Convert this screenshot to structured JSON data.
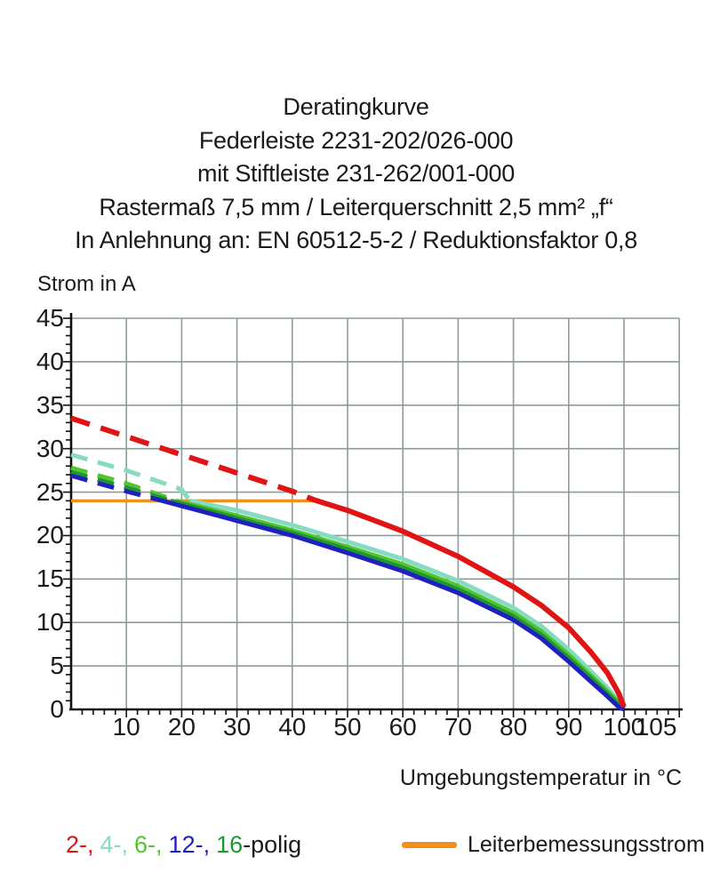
{
  "title": {
    "lines": [
      "Deratingkurve",
      "Federleiste 2231-202/026-000",
      "mit Stiftleiste 231-262/001-000",
      "Rastermaß 7,5 mm / Leiterquerschnitt 2,5 mm² „f“",
      "In Anlehnung an: EN 60512-5-2 / Reduktionsfaktor 0,8"
    ]
  },
  "colors": {
    "red": "#e01414",
    "cyan": "#85dcc2",
    "light_green": "#52c52e",
    "dark_green": "#1e9632",
    "blue": "#2020bE",
    "orange": "#f0911e",
    "grid": "#8e9b9b",
    "axis": "#111111"
  },
  "chart_data": {
    "type": "line",
    "title": "Deratingkurve",
    "xlabel": "Umgebungstemperatur in °C",
    "ylabel": "Strom in A",
    "xlim": [
      0,
      110
    ],
    "ylim": [
      0,
      45
    ],
    "grid": true,
    "x_gridline_step": 10,
    "y_gridline_step": 5,
    "x_minor_tick_step": 2,
    "y_minor_tick_step": 1,
    "x_tick_labels": [
      10,
      20,
      30,
      40,
      50,
      60,
      70,
      80,
      90,
      100,
      105
    ],
    "y_tick_labels": [
      45,
      40,
      35,
      30,
      25,
      20,
      15,
      10,
      5,
      0
    ],
    "legend_position": "bottom",
    "rated_line": {
      "name": "Leiterbemessungsstrom",
      "color": "#f0911e",
      "y": 24,
      "x_range": [
        0,
        44
      ]
    },
    "series": [
      {
        "name": "4-polig",
        "color": "#85dcc2",
        "dash_until_x": 21.5,
        "points": [
          [
            0,
            29.3
          ],
          [
            10,
            27.5
          ],
          [
            20,
            25.3
          ],
          [
            21.5,
            24.0
          ],
          [
            30,
            22.9
          ],
          [
            40,
            21.2
          ],
          [
            50,
            19.3
          ],
          [
            60,
            17.3
          ],
          [
            70,
            14.8
          ],
          [
            80,
            11.7
          ],
          [
            85,
            9.6
          ],
          [
            90,
            6.9
          ],
          [
            94,
            4.4
          ],
          [
            97,
            2.5
          ],
          [
            99,
            1.0
          ],
          [
            100,
            0.2
          ]
        ]
      },
      {
        "name": "6-polig",
        "color": "#52c52e",
        "dash_until_x": 19,
        "points": [
          [
            0,
            27.8
          ],
          [
            10,
            26.0
          ],
          [
            19,
            24.0
          ],
          [
            30,
            22.3
          ],
          [
            40,
            20.6
          ],
          [
            50,
            18.7
          ],
          [
            60,
            16.7
          ],
          [
            70,
            14.2
          ],
          [
            80,
            11.1
          ],
          [
            85,
            9.0
          ],
          [
            90,
            6.3
          ],
          [
            94,
            3.9
          ],
          [
            97,
            2.1
          ],
          [
            99,
            0.8
          ],
          [
            100,
            0.1
          ]
        ]
      },
      {
        "name": "16-polig",
        "color": "#1e9632",
        "dash_until_x": 18,
        "points": [
          [
            0,
            27.3
          ],
          [
            10,
            25.5
          ],
          [
            18,
            24.0
          ],
          [
            30,
            22.0
          ],
          [
            40,
            20.3
          ],
          [
            50,
            18.4
          ],
          [
            60,
            16.3
          ],
          [
            70,
            13.8
          ],
          [
            80,
            10.7
          ],
          [
            85,
            8.6
          ],
          [
            90,
            5.9
          ],
          [
            94,
            3.6
          ],
          [
            97,
            1.8
          ],
          [
            99,
            0.6
          ],
          [
            100,
            0.05
          ]
        ]
      },
      {
        "name": "12-polig",
        "color": "#2020be",
        "dash_until_x": 16.5,
        "points": [
          [
            0,
            26.9
          ],
          [
            10,
            25.1
          ],
          [
            16.5,
            24.0
          ],
          [
            30,
            21.7
          ],
          [
            40,
            20.0
          ],
          [
            50,
            18.0
          ],
          [
            60,
            15.9
          ],
          [
            70,
            13.4
          ],
          [
            80,
            10.3
          ],
          [
            85,
            8.2
          ],
          [
            90,
            5.5
          ],
          [
            94,
            3.2
          ],
          [
            97,
            1.5
          ],
          [
            99,
            0.3
          ],
          [
            100,
            0.0
          ]
        ]
      },
      {
        "name": "2-polig",
        "color": "#e01414",
        "dash_until_x": 44,
        "points": [
          [
            0,
            33.5
          ],
          [
            10,
            31.4
          ],
          [
            20,
            29.3
          ],
          [
            30,
            27.2
          ],
          [
            40,
            25.1
          ],
          [
            44,
            24.1
          ],
          [
            50,
            22.9
          ],
          [
            60,
            20.5
          ],
          [
            70,
            17.6
          ],
          [
            80,
            14.1
          ],
          [
            85,
            12.0
          ],
          [
            90,
            9.4
          ],
          [
            94,
            6.6
          ],
          [
            97,
            4.2
          ],
          [
            99,
            1.9
          ],
          [
            100,
            0.3
          ]
        ]
      }
    ]
  },
  "legend": {
    "poles": {
      "items": [
        {
          "label": "2-,",
          "color": "#e01414"
        },
        {
          "label": "4-,",
          "color": "#85dcc2"
        },
        {
          "label": "6-,",
          "color": "#52c52e"
        },
        {
          "label": "12-,",
          "color": "#2020be"
        },
        {
          "label": "16",
          "color": "#1e9632"
        }
      ],
      "suffix": "-polig"
    },
    "rated_current_label": "Leiterbemessungsstrom"
  }
}
